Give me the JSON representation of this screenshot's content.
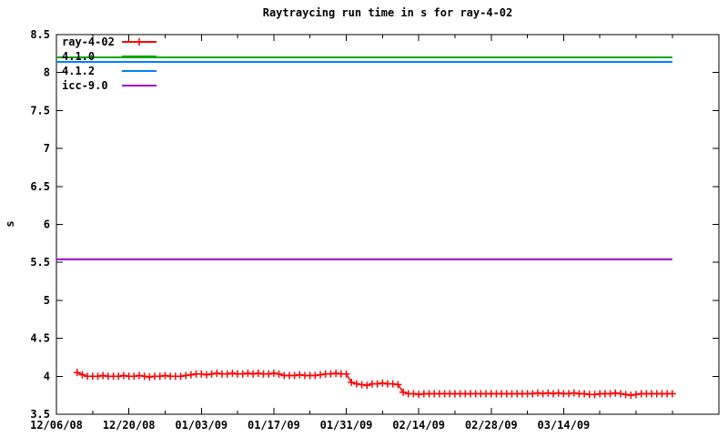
{
  "window": {
    "background": "#ffffff",
    "axis_color": "#000000"
  },
  "chart_data": {
    "type": "line",
    "title": "Raytraycing run time in s for ray-4-02",
    "ylabel": "s",
    "xlabel": "",
    "grid": false,
    "legend": {
      "position": "top-left",
      "entries": [
        {
          "label": "ray-4-02",
          "color": "#ff0000",
          "style": "line+plus-marker"
        },
        {
          "label": "4.1.0",
          "color": "#00a800",
          "style": "line"
        },
        {
          "label": "4.1.2",
          "color": "#0080ff",
          "style": "line"
        },
        {
          "label": "icc-9.0",
          "color": "#a000d0",
          "style": "line"
        }
      ]
    },
    "x_axis": {
      "unit": "date (days since 12/06/08)",
      "range": [
        0,
        128
      ],
      "ticks": [
        {
          "d": 0,
          "label": "12/06/08"
        },
        {
          "d": 7
        },
        {
          "d": 14,
          "label": "12/20/08"
        },
        {
          "d": 21
        },
        {
          "d": 28,
          "label": "01/03/09"
        },
        {
          "d": 35
        },
        {
          "d": 42,
          "label": "01/17/09"
        },
        {
          "d": 49
        },
        {
          "d": 56,
          "label": "01/31/09"
        },
        {
          "d": 63
        },
        {
          "d": 70,
          "label": "02/14/09"
        },
        {
          "d": 77
        },
        {
          "d": 84,
          "label": "02/28/09"
        },
        {
          "d": 91
        },
        {
          "d": 98,
          "label": "03/14/09"
        },
        {
          "d": 105
        },
        {
          "d": 112
        },
        {
          "d": 119
        }
      ]
    },
    "y_axis": {
      "range": [
        3.5,
        8.5
      ],
      "tick_step": 0.5,
      "ticks": [
        {
          "v": 3.5,
          "label": "3.5"
        },
        {
          "v": 4,
          "label": "4"
        },
        {
          "v": 4.5,
          "label": "4.5"
        },
        {
          "v": 5,
          "label": "5"
        },
        {
          "v": 5.5,
          "label": "5.5"
        },
        {
          "v": 6,
          "label": "6"
        },
        {
          "v": 6.5,
          "label": "6.5"
        },
        {
          "v": 7,
          "label": "7"
        },
        {
          "v": 7.5,
          "label": "7.5"
        },
        {
          "v": 8,
          "label": "8"
        },
        {
          "v": 8.5,
          "label": "8.5"
        }
      ]
    },
    "series": [
      {
        "name": "ray-4-02",
        "color": "#ff0000",
        "type": "line+marker",
        "marker": "plus",
        "points": [
          [
            4,
            4.05
          ],
          [
            5,
            4.02
          ],
          [
            6,
            4.0
          ],
          [
            7,
            4.0
          ],
          [
            8,
            4.0
          ],
          [
            9,
            4.01
          ],
          [
            10,
            4.0
          ],
          [
            11,
            4.0
          ],
          [
            12,
            4.0
          ],
          [
            13,
            4.01
          ],
          [
            14,
            4.0
          ],
          [
            15,
            4.0
          ],
          [
            16,
            4.01
          ],
          [
            17,
            4.0
          ],
          [
            18,
            3.99
          ],
          [
            19,
            4.0
          ],
          [
            20,
            4.0
          ],
          [
            21,
            4.01
          ],
          [
            22,
            4.0
          ],
          [
            23,
            4.0
          ],
          [
            24,
            4.0
          ],
          [
            25,
            4.01
          ],
          [
            26,
            4.02
          ],
          [
            27,
            4.03
          ],
          [
            28,
            4.03
          ],
          [
            29,
            4.02
          ],
          [
            30,
            4.03
          ],
          [
            31,
            4.04
          ],
          [
            32,
            4.03
          ],
          [
            33,
            4.03
          ],
          [
            34,
            4.04
          ],
          [
            35,
            4.03
          ],
          [
            36,
            4.03
          ],
          [
            37,
            4.04
          ],
          [
            38,
            4.03
          ],
          [
            39,
            4.04
          ],
          [
            40,
            4.03
          ],
          [
            41,
            4.03
          ],
          [
            42,
            4.04
          ],
          [
            43,
            4.03
          ],
          [
            44,
            4.01
          ],
          [
            45,
            4.01
          ],
          [
            46,
            4.01
          ],
          [
            47,
            4.02
          ],
          [
            48,
            4.01
          ],
          [
            49,
            4.01
          ],
          [
            50,
            4.01
          ],
          [
            51,
            4.02
          ],
          [
            52,
            4.03
          ],
          [
            53,
            4.03
          ],
          [
            54,
            4.04
          ],
          [
            55,
            4.03
          ],
          [
            56,
            4.03
          ],
          [
            57,
            3.92
          ],
          [
            58,
            3.9
          ],
          [
            59,
            3.89
          ],
          [
            60,
            3.88
          ],
          [
            61,
            3.9
          ],
          [
            62,
            3.9
          ],
          [
            63,
            3.91
          ],
          [
            64,
            3.9
          ],
          [
            65,
            3.9
          ],
          [
            66,
            3.89
          ],
          [
            67,
            3.79
          ],
          [
            68,
            3.77
          ],
          [
            69,
            3.77
          ],
          [
            70,
            3.76
          ],
          [
            71,
            3.77
          ],
          [
            72,
            3.77
          ],
          [
            73,
            3.77
          ],
          [
            74,
            3.77
          ],
          [
            75,
            3.77
          ],
          [
            76,
            3.77
          ],
          [
            77,
            3.77
          ],
          [
            78,
            3.77
          ],
          [
            79,
            3.77
          ],
          [
            80,
            3.77
          ],
          [
            81,
            3.77
          ],
          [
            82,
            3.77
          ],
          [
            83,
            3.77
          ],
          [
            84,
            3.77
          ],
          [
            85,
            3.77
          ],
          [
            86,
            3.77
          ],
          [
            87,
            3.77
          ],
          [
            88,
            3.77
          ],
          [
            89,
            3.77
          ],
          [
            90,
            3.77
          ],
          [
            91,
            3.77
          ],
          [
            92,
            3.77
          ],
          [
            93,
            3.78
          ],
          [
            94,
            3.77
          ],
          [
            95,
            3.78
          ],
          [
            96,
            3.77
          ],
          [
            97,
            3.78
          ],
          [
            98,
            3.77
          ],
          [
            99,
            3.77
          ],
          [
            100,
            3.78
          ],
          [
            101,
            3.77
          ],
          [
            102,
            3.77
          ],
          [
            103,
            3.76
          ],
          [
            104,
            3.76
          ],
          [
            105,
            3.77
          ],
          [
            106,
            3.77
          ],
          [
            107,
            3.77
          ],
          [
            108,
            3.78
          ],
          [
            109,
            3.77
          ],
          [
            110,
            3.76
          ],
          [
            111,
            3.75
          ],
          [
            112,
            3.76
          ],
          [
            113,
            3.77
          ],
          [
            114,
            3.77
          ],
          [
            115,
            3.77
          ],
          [
            116,
            3.77
          ],
          [
            117,
            3.77
          ],
          [
            118,
            3.77
          ],
          [
            119,
            3.77
          ]
        ]
      },
      {
        "name": "4.1.0",
        "color": "#00a800",
        "type": "hline",
        "value": 8.2,
        "x_start": 0,
        "x_end": 119
      },
      {
        "name": "4.1.2",
        "color": "#0080ff",
        "type": "hline",
        "value": 8.14,
        "x_start": 0,
        "x_end": 119
      },
      {
        "name": "icc-9.0",
        "color": "#a000d0",
        "type": "hline",
        "value": 5.54,
        "x_start": 0,
        "x_end": 119
      }
    ]
  }
}
